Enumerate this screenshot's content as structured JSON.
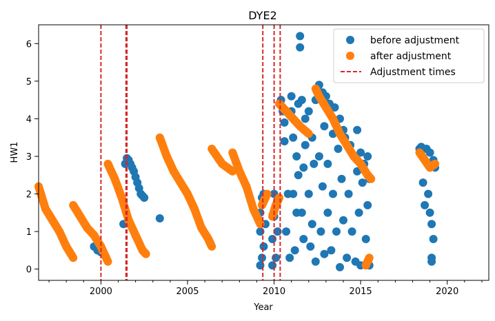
{
  "chart_data": {
    "type": "scatter",
    "title": "DYE2",
    "xlabel": "Year",
    "ylabel": "HW1",
    "xlim": [
      1996.4,
      2022.4
    ],
    "ylim": [
      -0.3,
      6.5
    ],
    "xticks": [
      2000,
      2005,
      2010,
      2015,
      2020
    ],
    "xtick_labels": [
      "2000",
      "2005",
      "2010",
      "2015",
      "2020"
    ],
    "yticks": [
      0,
      1,
      2,
      3,
      4,
      5,
      6
    ],
    "ytick_labels": [
      "0",
      "1",
      "2",
      "3",
      "4",
      "5",
      "6"
    ],
    "minor_xticks_per_year": true,
    "grid": false,
    "legend_position": "top-right",
    "series": [
      {
        "name": "before adjustment",
        "color": "#1f77b4",
        "marker": "circle",
        "points": [
          [
            1999.6,
            0.6
          ],
          [
            1999.8,
            0.5
          ],
          [
            2000.0,
            0.45
          ],
          [
            2000.2,
            0.4
          ],
          [
            2001.3,
            1.2
          ],
          [
            2001.4,
            2.8
          ],
          [
            2001.5,
            2.95
          ],
          [
            2001.6,
            2.9
          ],
          [
            2001.7,
            2.8
          ],
          [
            2001.8,
            2.7
          ],
          [
            2001.9,
            2.6
          ],
          [
            2002.0,
            2.45
          ],
          [
            2002.1,
            2.3
          ],
          [
            2002.2,
            2.15
          ],
          [
            2002.3,
            2.0
          ],
          [
            2002.4,
            1.95
          ],
          [
            2002.5,
            1.9
          ],
          [
            2003.4,
            1.35
          ],
          [
            2009.2,
            0.1
          ],
          [
            2009.2,
            1.0
          ],
          [
            2009.2,
            1.5
          ],
          [
            2009.3,
            0.3
          ],
          [
            2009.3,
            1.9
          ],
          [
            2009.4,
            2.0
          ],
          [
            2009.4,
            0.6
          ],
          [
            2009.5,
            1.2
          ],
          [
            2009.9,
            0.1
          ],
          [
            2009.9,
            0.8
          ],
          [
            2010.0,
            1.4
          ],
          [
            2010.0,
            2.0
          ],
          [
            2010.1,
            0.3
          ],
          [
            2010.2,
            1.0
          ],
          [
            2010.2,
            1.8
          ],
          [
            2010.3,
            4.4
          ],
          [
            2010.4,
            4.5
          ],
          [
            2010.5,
            4.2
          ],
          [
            2010.6,
            3.9
          ],
          [
            2010.6,
            3.4
          ],
          [
            2010.7,
            1.0
          ],
          [
            2010.8,
            2.0
          ],
          [
            2010.9,
            0.3
          ],
          [
            2011.0,
            4.6
          ],
          [
            2011.0,
            4.2
          ],
          [
            2011.1,
            3.5
          ],
          [
            2011.1,
            2.0
          ],
          [
            2011.2,
            0.5
          ],
          [
            2011.3,
            1.5
          ],
          [
            2011.3,
            3.0
          ],
          [
            2011.4,
            2.5
          ],
          [
            2011.4,
            4.4
          ],
          [
            2011.5,
            6.2
          ],
          [
            2011.5,
            5.9
          ],
          [
            2011.6,
            4.5
          ],
          [
            2011.6,
            1.5
          ],
          [
            2011.7,
            2.7
          ],
          [
            2011.7,
            0.8
          ],
          [
            2011.8,
            3.3
          ],
          [
            2011.8,
            4.0
          ],
          [
            2012.0,
            4.2
          ],
          [
            2012.0,
            2.0
          ],
          [
            2012.1,
            0.6
          ],
          [
            2012.2,
            3.5
          ],
          [
            2012.2,
            1.2
          ],
          [
            2012.3,
            2.8
          ],
          [
            2012.4,
            4.5
          ],
          [
            2012.4,
            0.2
          ],
          [
            2012.5,
            4.8
          ],
          [
            2012.6,
            4.9
          ],
          [
            2012.6,
            3.0
          ],
          [
            2012.7,
            1.0
          ],
          [
            2012.8,
            2.2
          ],
          [
            2012.8,
            4.7
          ],
          [
            2012.9,
            0.4
          ],
          [
            2012.9,
            3.8
          ],
          [
            2013.0,
            4.6
          ],
          [
            2013.1,
            1.5
          ],
          [
            2013.1,
            2.8
          ],
          [
            2013.2,
            4.4
          ],
          [
            2013.3,
            0.5
          ],
          [
            2013.4,
            3.6
          ],
          [
            2013.4,
            2.0
          ],
          [
            2013.5,
            4.3
          ],
          [
            2013.6,
            1.0
          ],
          [
            2013.7,
            3.2
          ],
          [
            2013.8,
            4.0
          ],
          [
            2013.8,
            0.05
          ],
          [
            2013.9,
            2.4
          ],
          [
            2014.0,
            3.7
          ],
          [
            2014.0,
            1.3
          ],
          [
            2014.1,
            3.5
          ],
          [
            2014.2,
            0.3
          ],
          [
            2014.3,
            2.0
          ],
          [
            2014.4,
            3.3
          ],
          [
            2014.5,
            1.0
          ],
          [
            2014.6,
            3.0
          ],
          [
            2014.7,
            0.2
          ],
          [
            2014.8,
            2.6
          ],
          [
            2014.8,
            3.7
          ],
          [
            2014.9,
            1.5
          ],
          [
            2015.0,
            3.1
          ],
          [
            2015.0,
            0.1
          ],
          [
            2015.1,
            2.3
          ],
          [
            2015.2,
            2.8
          ],
          [
            2015.3,
            0.8
          ],
          [
            2015.4,
            3.0
          ],
          [
            2015.4,
            1.7
          ],
          [
            2015.5,
            0.1
          ],
          [
            2015.5,
            2.4
          ],
          [
            2018.4,
            3.2
          ],
          [
            2018.5,
            3.25
          ],
          [
            2018.6,
            2.3
          ],
          [
            2018.7,
            1.7
          ],
          [
            2018.8,
            3.2
          ],
          [
            2018.9,
            2.0
          ],
          [
            2019.0,
            1.5
          ],
          [
            2019.0,
            3.1
          ],
          [
            2019.1,
            0.3
          ],
          [
            2019.1,
            0.2
          ],
          [
            2019.1,
            1.2
          ],
          [
            2019.2,
            2.9
          ],
          [
            2019.2,
            0.8
          ],
          [
            2019.3,
            2.7
          ]
        ]
      },
      {
        "name": "after adjustment",
        "color": "#ff7f0e",
        "marker": "circle",
        "segments": [
          {
            "x": [
              1996.4,
              1996.8,
              1997.2,
              1997.6,
              1998.0,
              1998.4
            ],
            "y": [
              2.2,
              1.6,
              1.3,
              1.0,
              0.6,
              0.3
            ]
          },
          {
            "x": [
              1998.4,
              1998.8,
              1999.2,
              1999.6,
              2000.0,
              2000.4
            ],
            "y": [
              1.7,
              1.4,
              1.1,
              0.9,
              0.6,
              0.2
            ]
          },
          {
            "x": [
              2000.4,
              2000.8,
              2001.2,
              2001.6,
              2002.0,
              2002.4,
              2002.6
            ],
            "y": [
              2.8,
              2.4,
              1.9,
              1.3,
              0.9,
              0.5,
              0.4
            ]
          },
          {
            "x": [
              2003.4,
              2003.8,
              2004.2,
              2004.6,
              2005.0,
              2005.4,
              2005.8,
              2006.2,
              2006.4
            ],
            "y": [
              3.5,
              3.0,
              2.6,
              2.3,
              2.0,
              1.6,
              1.1,
              0.8,
              0.6
            ]
          },
          {
            "x": [
              2006.4,
              2007.0,
              2007.6
            ],
            "y": [
              3.2,
              2.8,
              2.6
            ]
          },
          {
            "x": [
              2007.6,
              2008.0,
              2008.4,
              2008.8,
              2009.2
            ],
            "y": [
              3.1,
              2.6,
              2.2,
              1.6,
              1.2
            ]
          },
          {
            "x": [
              2009.3,
              2009.5,
              2009.6
            ],
            "y": [
              1.7,
              1.9,
              2.0
            ]
          },
          {
            "x": [
              2009.9,
              2010.1,
              2010.3
            ],
            "y": [
              1.4,
              1.7,
              1.9
            ]
          },
          {
            "x": [
              2010.3,
              2010.7,
              2011.1,
              2011.5,
              2012.0
            ],
            "y": [
              4.4,
              4.2,
              4.0,
              3.8,
              3.6
            ]
          },
          {
            "x": [
              2012.4,
              2012.6,
              2013.0,
              2013.4,
              2013.8,
              2014.2,
              2014.6,
              2015.0,
              2015.4,
              2015.6
            ],
            "y": [
              4.8,
              4.6,
              4.3,
              4.0,
              3.6,
              3.3,
              3.0,
              2.8,
              2.5,
              2.4
            ]
          },
          {
            "x": [
              2015.3,
              2015.5
            ],
            "y": [
              0.1,
              0.3
            ]
          },
          {
            "x": [
              2018.4,
              2018.7,
              2019.0,
              2019.3
            ],
            "y": [
              3.1,
              2.9,
              2.7,
              2.8
            ]
          }
        ]
      }
    ],
    "adjustment_times": {
      "name": "Adjustment times",
      "color": "#d62728",
      "style": "dashed",
      "x": [
        2000.0,
        2001.45,
        2001.5,
        2009.35,
        2010.0,
        2010.35
      ]
    }
  }
}
